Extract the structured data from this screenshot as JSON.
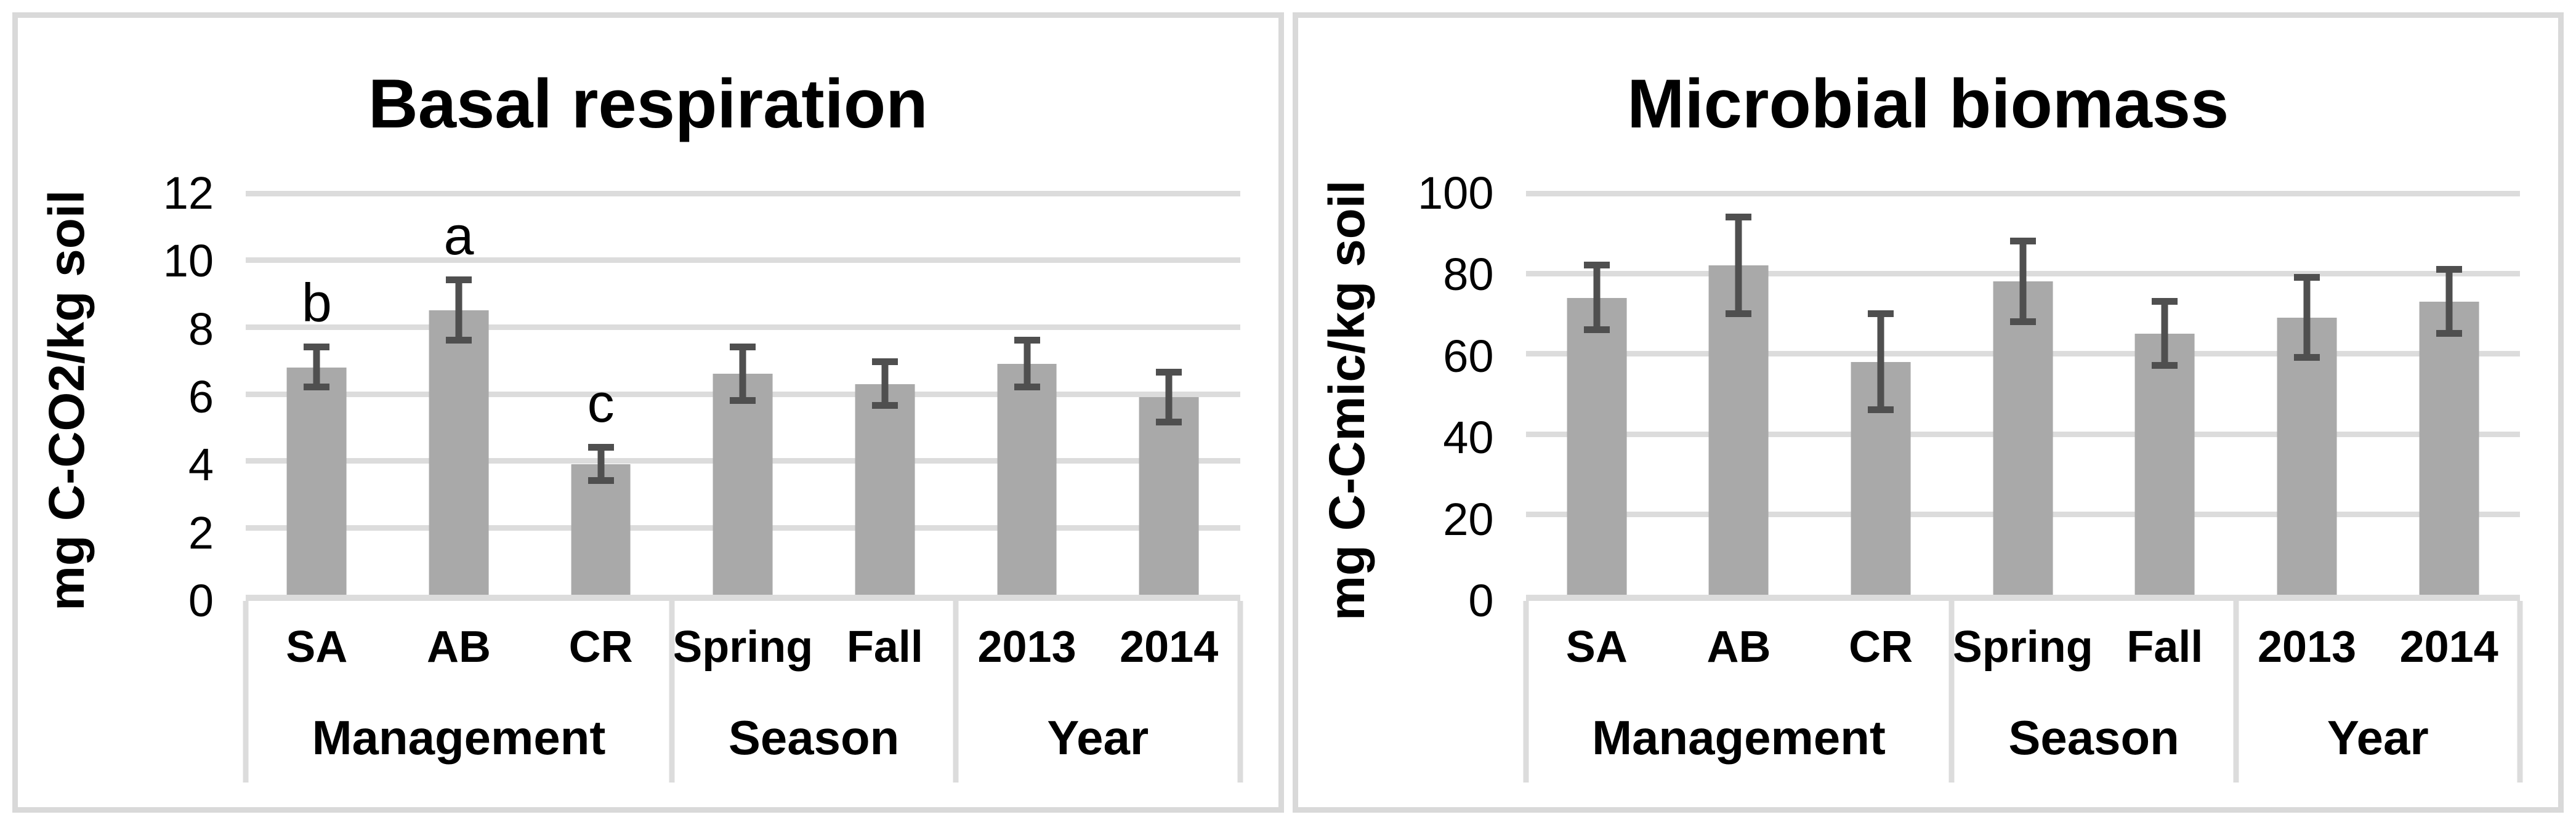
{
  "palette": {
    "bar_fill": "#a9a9a9",
    "error_bar": "#4f4f4f",
    "gridline": "#dcdcdc",
    "axis_line": "#dcdcdc",
    "panel_border": "#d9d9d9",
    "text": "#000000",
    "background": "#ffffff"
  },
  "chart_data": [
    {
      "type": "bar",
      "title": "Basal respiration",
      "xlabel": "",
      "ylabel": "mg C-CO2/kg soil",
      "ylim": [
        0,
        12
      ],
      "yticks": [
        0,
        2,
        4,
        6,
        8,
        10,
        12
      ],
      "grid": true,
      "legend": false,
      "categories": [
        "SA",
        "AB",
        "CR",
        "Spring",
        "Fall",
        "2013",
        "2014"
      ],
      "values": [
        6.8,
        8.5,
        3.9,
        6.6,
        6.3,
        6.9,
        5.9
      ],
      "errors": [
        0.6,
        0.9,
        0.5,
        0.8,
        0.65,
        0.7,
        0.75
      ],
      "sig_letters": [
        "b",
        "a",
        "c",
        "",
        "",
        "",
        ""
      ],
      "groups": [
        {
          "label": "Management",
          "count": 3
        },
        {
          "label": "Season",
          "count": 2
        },
        {
          "label": "Year",
          "count": 2
        }
      ]
    },
    {
      "type": "bar",
      "title": "Microbial biomass",
      "xlabel": "",
      "ylabel": "mg C-Cmic/kg soil",
      "ylim": [
        0,
        100
      ],
      "yticks": [
        0,
        20,
        40,
        60,
        80,
        100
      ],
      "grid": true,
      "legend": false,
      "categories": [
        "SA",
        "AB",
        "CR",
        "Spring",
        "Fall",
        "2013",
        "2014"
      ],
      "values": [
        74,
        82,
        58,
        78,
        65,
        69,
        73
      ],
      "errors": [
        8,
        12,
        12,
        10,
        8,
        10,
        8
      ],
      "sig_letters": [
        "",
        "",
        "",
        "",
        "",
        "",
        ""
      ],
      "groups": [
        {
          "label": "Management",
          "count": 3
        },
        {
          "label": "Season",
          "count": 2
        },
        {
          "label": "Year",
          "count": 2
        }
      ]
    }
  ]
}
